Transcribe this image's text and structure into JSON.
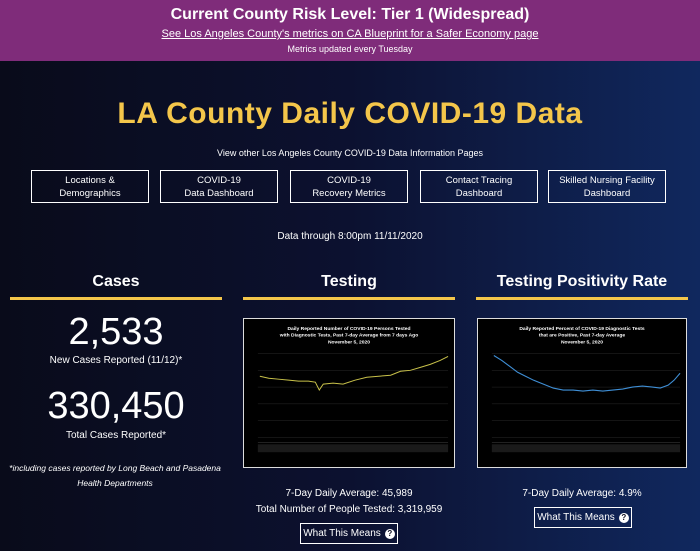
{
  "banner": {
    "risk_level": "Current County Risk Level: Tier 1 (Widespread)",
    "blueprint_link": "See Los Angeles County's metrics on CA Blueprint for a Safer Economy page",
    "updated_note": "Metrics updated every Tuesday"
  },
  "page": {
    "title": "LA County Daily COVID-19 Data",
    "subtitle": "View other Los Angeles County COVID-19 Data Information Pages",
    "data_through": "Data through 8:00pm 11/11/2020"
  },
  "nav": [
    {
      "line1": "Locations &",
      "line2": "Demographics"
    },
    {
      "line1": "COVID-19",
      "line2": "Data Dashboard"
    },
    {
      "line1": "COVID-19",
      "line2": "Recovery Metrics"
    },
    {
      "line1": "Contact Tracing",
      "line2": "Dashboard"
    },
    {
      "line1": "Skilled Nursing Facility",
      "line2": "Dashboard"
    }
  ],
  "cases": {
    "heading": "Cases",
    "new_cases": "2,533",
    "new_cases_label": "New Cases Reported (11/12)*",
    "total_cases": "330,450",
    "total_cases_label": "Total Cases Reported*",
    "footnote_line1": "*including cases reported by Long Beach and Pasadena",
    "footnote_line2": "Health Departments"
  },
  "testing": {
    "heading": "Testing",
    "chart_title_1": "Daily Reported Number of COVID-19 Persons Tested",
    "chart_title_2": "with Diagnostic Tests, Past 7-day Average from 7 days Ago",
    "chart_title_3": "November 5, 2020",
    "daily_average": "7-Day Daily Average: 45,989",
    "total_tested": "Total Number of People Tested: 3,319,959",
    "means_label": "What This Means",
    "line_color": "#c9c24a"
  },
  "positivity": {
    "heading": "Testing Positivity Rate",
    "chart_title_1": "Daily Reported Percent of COVID-19 Diagnostic Tests",
    "chart_title_2": "that are Positive, Past 7-day Average",
    "chart_title_3": "November 5, 2020",
    "daily_average": "7-Day Daily Average: 4.9%",
    "means_label": "What This Means",
    "line_color": "#3f8fd6"
  },
  "colors": {
    "banner": "#7f2c7a",
    "accent": "#f4c64a"
  },
  "icons": {
    "help": "question-circle-icon"
  }
}
